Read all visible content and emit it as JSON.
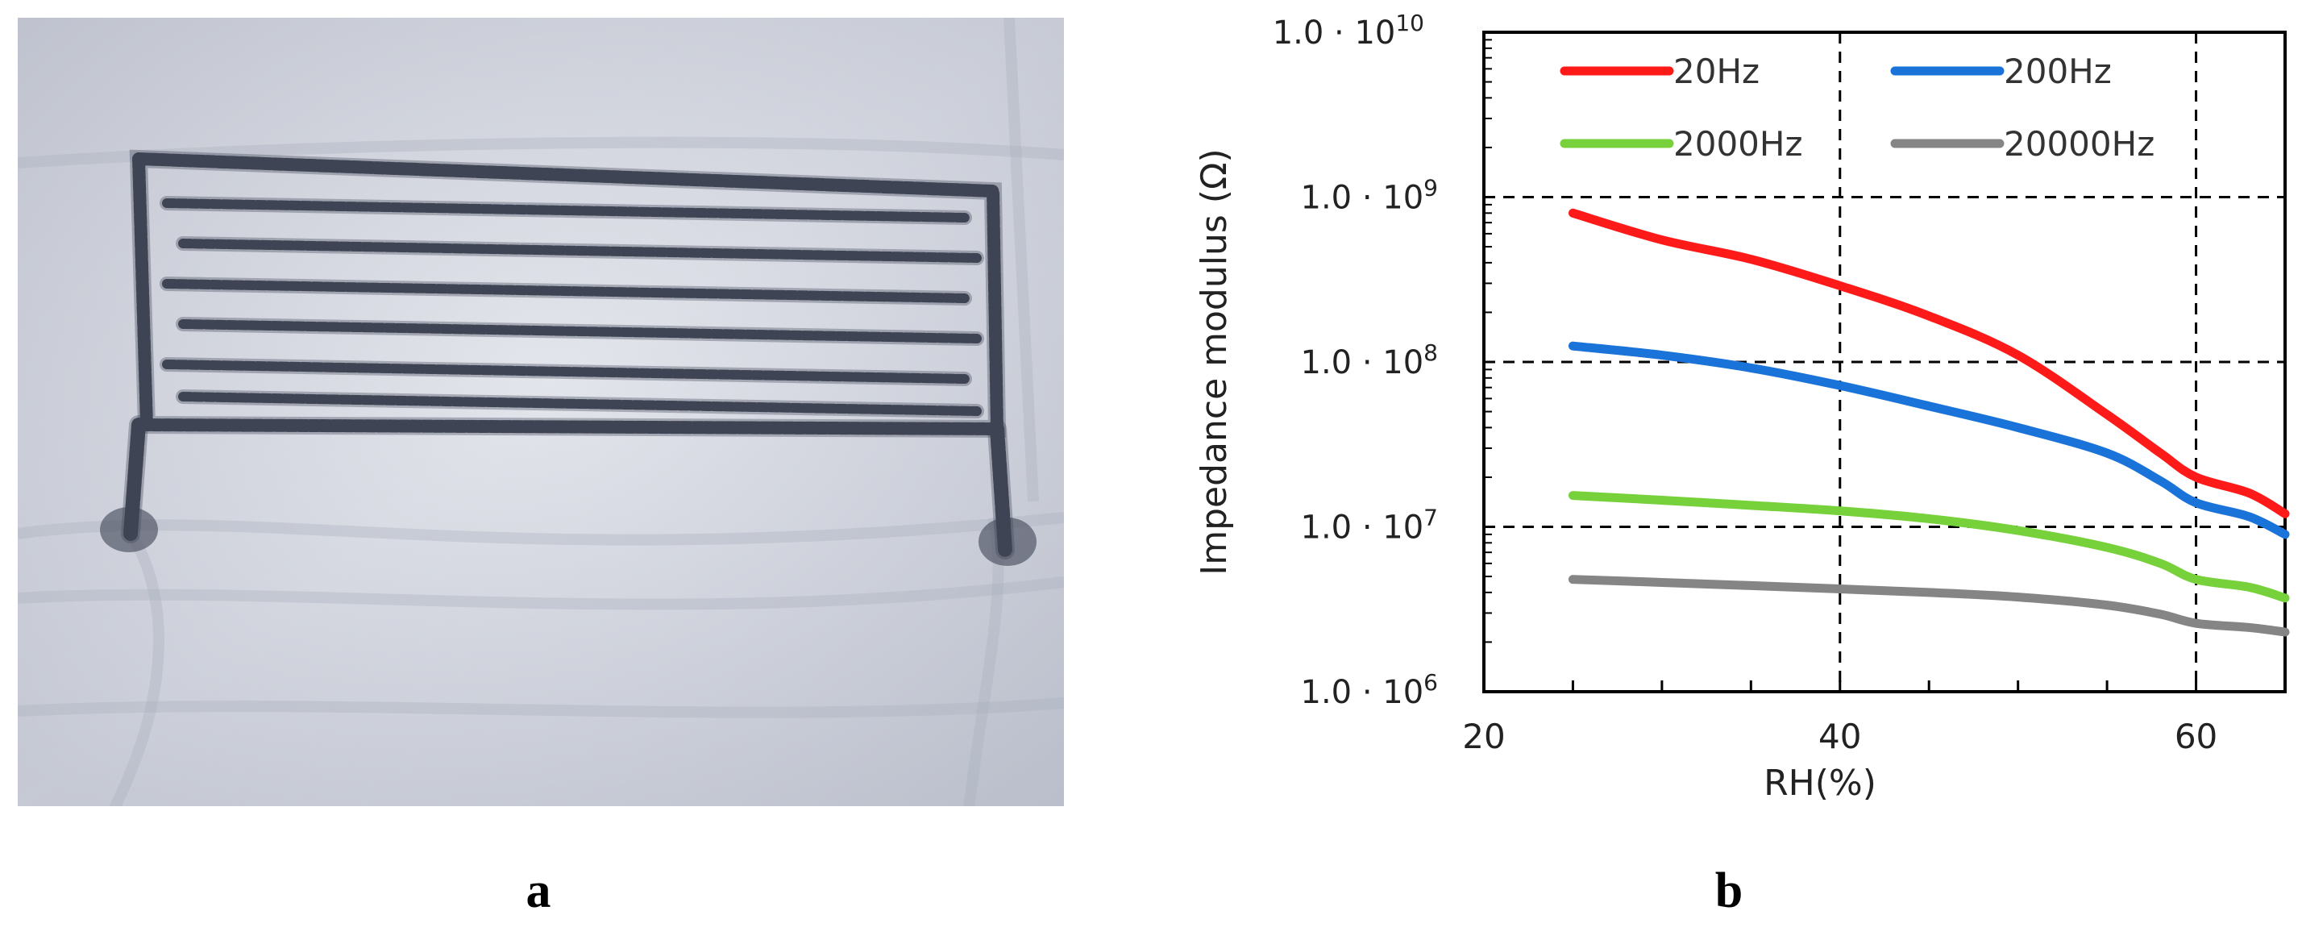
{
  "panels": {
    "a": {
      "label": "a"
    },
    "b": {
      "label": "b"
    }
  },
  "colors": {
    "fabric": "#d4d7e1",
    "thread": "#3f4455",
    "series": [
      "#ff1a1a",
      "#1a73d9",
      "#77d13b",
      "#858585"
    ]
  },
  "chart_data": {
    "type": "line",
    "title": "",
    "xlabel": "RH(%)",
    "ylabel": "Impedance modulus (Ω)",
    "xlim": [
      20,
      65
    ],
    "ylim": [
      1000000,
      10000000000
    ],
    "yscale": "log",
    "x_ticks": [
      20,
      40,
      60
    ],
    "y_ticks": [
      {
        "value": 1000000,
        "base": "1.0 · 10",
        "exp": "6"
      },
      {
        "value": 10000000,
        "base": "1.0 · 10",
        "exp": "7"
      },
      {
        "value": 100000000,
        "base": "1.0 · 10",
        "exp": "8"
      },
      {
        "value": 1000000000,
        "base": "1.0 · 10",
        "exp": "9"
      },
      {
        "value": 10000000000,
        "base": "1.0 · 10",
        "exp": "10"
      }
    ],
    "grid": true,
    "legend": "top",
    "series": [
      {
        "name": "20Hz",
        "color": "#ff1a1a",
        "x": [
          25,
          30,
          35,
          40,
          45,
          50,
          55,
          58,
          60,
          63,
          65
        ],
        "y": [
          800000000,
          550000000,
          420000000,
          290000000,
          190000000,
          110000000,
          48000000,
          28000000,
          20000000,
          16000000,
          12000000
        ]
      },
      {
        "name": "200Hz",
        "color": "#1a73d9",
        "x": [
          25,
          30,
          35,
          40,
          45,
          50,
          55,
          58,
          60,
          63,
          65
        ],
        "y": [
          125000000,
          110000000,
          92000000,
          72000000,
          54000000,
          40000000,
          28000000,
          19000000,
          14000000,
          11500000,
          9000000
        ]
      },
      {
        "name": "2000Hz",
        "color": "#77d13b",
        "x": [
          25,
          30,
          35,
          40,
          45,
          50,
          55,
          58,
          60,
          63,
          65
        ],
        "y": [
          15500000,
          14500000,
          13500000,
          12500000,
          11200000,
          9500000,
          7500000,
          6000000,
          4800000,
          4300000,
          3700000
        ]
      },
      {
        "name": "20000Hz",
        "color": "#858585",
        "x": [
          25,
          30,
          35,
          40,
          45,
          50,
          55,
          58,
          60,
          63,
          65
        ],
        "y": [
          4800000,
          4600000,
          4400000,
          4200000,
          4000000,
          3750000,
          3350000,
          2950000,
          2600000,
          2450000,
          2300000
        ]
      }
    ]
  }
}
